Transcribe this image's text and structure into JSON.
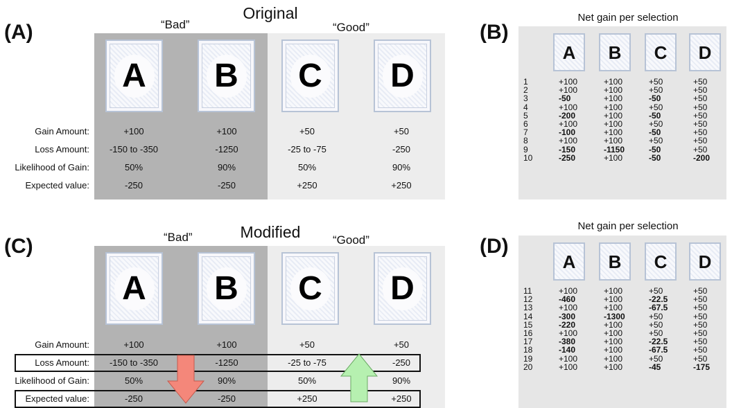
{
  "panels": {
    "a": "(A)",
    "b": "(B)",
    "c": "(C)",
    "d": "(D)"
  },
  "top": {
    "title": "Original",
    "bad": "“Bad”",
    "good": "“Good”"
  },
  "bottom": {
    "title": "Modified",
    "bad": "“Bad”",
    "good": "“Good”"
  },
  "decks": [
    "A",
    "B",
    "C",
    "D"
  ],
  "row_labels": [
    "Gain Amount:",
    "Loss Amount:",
    "Likelihood of Gain:",
    "Expected value:"
  ],
  "original_table": [
    [
      "+100",
      "+100",
      "+50",
      "+50"
    ],
    [
      "-150 to -350",
      "-1250",
      "-25 to -75",
      "-250"
    ],
    [
      "50%",
      "90%",
      "50%",
      "90%"
    ],
    [
      "-250",
      "-250",
      "+250",
      "+250"
    ]
  ],
  "modified_table": [
    [
      "+100",
      "+100",
      "+50",
      "+50"
    ],
    [
      "-150 to -350",
      "-1250",
      "-25 to -75",
      "-250"
    ],
    [
      "50%",
      "90%",
      "50%",
      "90%"
    ],
    [
      "-250",
      "-250",
      "+250",
      "+250"
    ]
  ],
  "net_gain_title": "Net gain per selection",
  "net_gain_b": {
    "trials": [
      "1",
      "2",
      "3",
      "4",
      "5",
      "6",
      "7",
      "8",
      "9",
      "10"
    ],
    "cols": [
      [
        "+100",
        "+100",
        "-50",
        "+100",
        "-200",
        "+100",
        "-100",
        "+100",
        "-150",
        "-250"
      ],
      [
        "+100",
        "+100",
        "+100",
        "+100",
        "+100",
        "+100",
        "+100",
        "+100",
        "-1150",
        "+100"
      ],
      [
        "+50",
        "+50",
        "-50",
        "+50",
        "-50",
        "+50",
        "-50",
        "+50",
        "-50",
        "-50"
      ],
      [
        "+50",
        "+50",
        "+50",
        "+50",
        "+50",
        "+50",
        "+50",
        "+50",
        "+50",
        "-200"
      ]
    ]
  },
  "net_gain_d": {
    "trials": [
      "11",
      "12",
      "13",
      "14",
      "15",
      "16",
      "17",
      "18",
      "19",
      "20"
    ],
    "cols": [
      [
        "+100",
        "-460",
        "+100",
        "-300",
        "-220",
        "+100",
        "-380",
        "-140",
        "+100",
        "+100"
      ],
      [
        "+100",
        "+100",
        "+100",
        "-1300",
        "+100",
        "+100",
        "+100",
        "+100",
        "+100",
        "+100"
      ],
      [
        "+50",
        "-22.5",
        "-67.5",
        "+50",
        "+50",
        "+50",
        "-22.5",
        "-67.5",
        "+50",
        "-45"
      ],
      [
        "+50",
        "+50",
        "+50",
        "+50",
        "+50",
        "+50",
        "+50",
        "+50",
        "+50",
        "-175"
      ]
    ]
  },
  "colors": {
    "bad_bg": "#b3b3b3",
    "good_bg": "#ededed",
    "down_arrow": "#f4877a",
    "up_arrow": "#b6f0b0"
  }
}
